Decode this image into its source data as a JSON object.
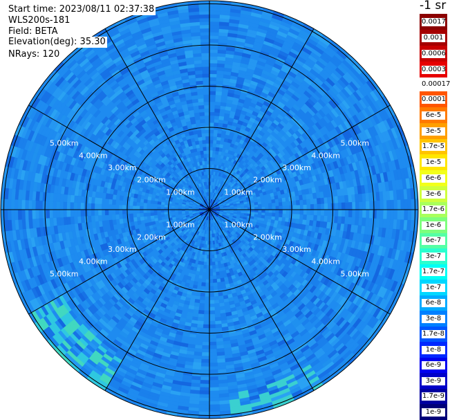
{
  "info": {
    "start_time": "Start time: 2023/08/11 02:37:38",
    "instrument": "WLS200s-181",
    "field": "Field: BETA",
    "elevation": "Elevation(deg): 35.30",
    "nrays": "NRays: 120"
  },
  "colorbar": {
    "unit_title": "-1 sr",
    "labels": [
      "0.0017",
      "0.001",
      "0.0006",
      "0.0003",
      "0.00017",
      "0.0001",
      "6e-5",
      "3e-5",
      "1.7e-5",
      "1e-5",
      "6e-6",
      "3e-6",
      "1.7e-6",
      "1e-6",
      "6e-7",
      "3e-7",
      "1.7e-7",
      "1e-7",
      "6e-8",
      "3e-8",
      "1.7e-8",
      "1e-8",
      "6e-9",
      "3e-9",
      "1.7e-9",
      "1e-9"
    ],
    "colors": [
      "#8b0000",
      "#a50000",
      "#c80000",
      "#e60000",
      "#ffffff",
      "#ff5500",
      "#ff7a00",
      "#ff9f00",
      "#ffc400",
      "#ffe600",
      "#f2ff1a",
      "#cfff3c",
      "#a8ff5c",
      "#7dff7d",
      "#55ffa5",
      "#2bffcf",
      "#00fff5",
      "#00d7ff",
      "#00aaff",
      "#0080ff",
      "#0055ff",
      "#0028ff",
      "#0000f0",
      "#0000c8",
      "#0000a0",
      "#000078"
    ],
    "heights": [
      23,
      23,
      23,
      23,
      20,
      23,
      23,
      23,
      22,
      23,
      23,
      23,
      22,
      23,
      22,
      23,
      22,
      23,
      22,
      23,
      22,
      23,
      22,
      23,
      22,
      23
    ]
  },
  "ppi": {
    "rings": [
      {
        "label": "1.00km",
        "r_km": 1
      },
      {
        "label": "2.00km",
        "r_km": 2
      },
      {
        "label": "3.00km",
        "r_km": 3
      },
      {
        "label": "4.00km",
        "r_km": 4
      },
      {
        "label": "5.00km",
        "r_km": 5
      }
    ],
    "max_range_km": 5.0
  }
}
